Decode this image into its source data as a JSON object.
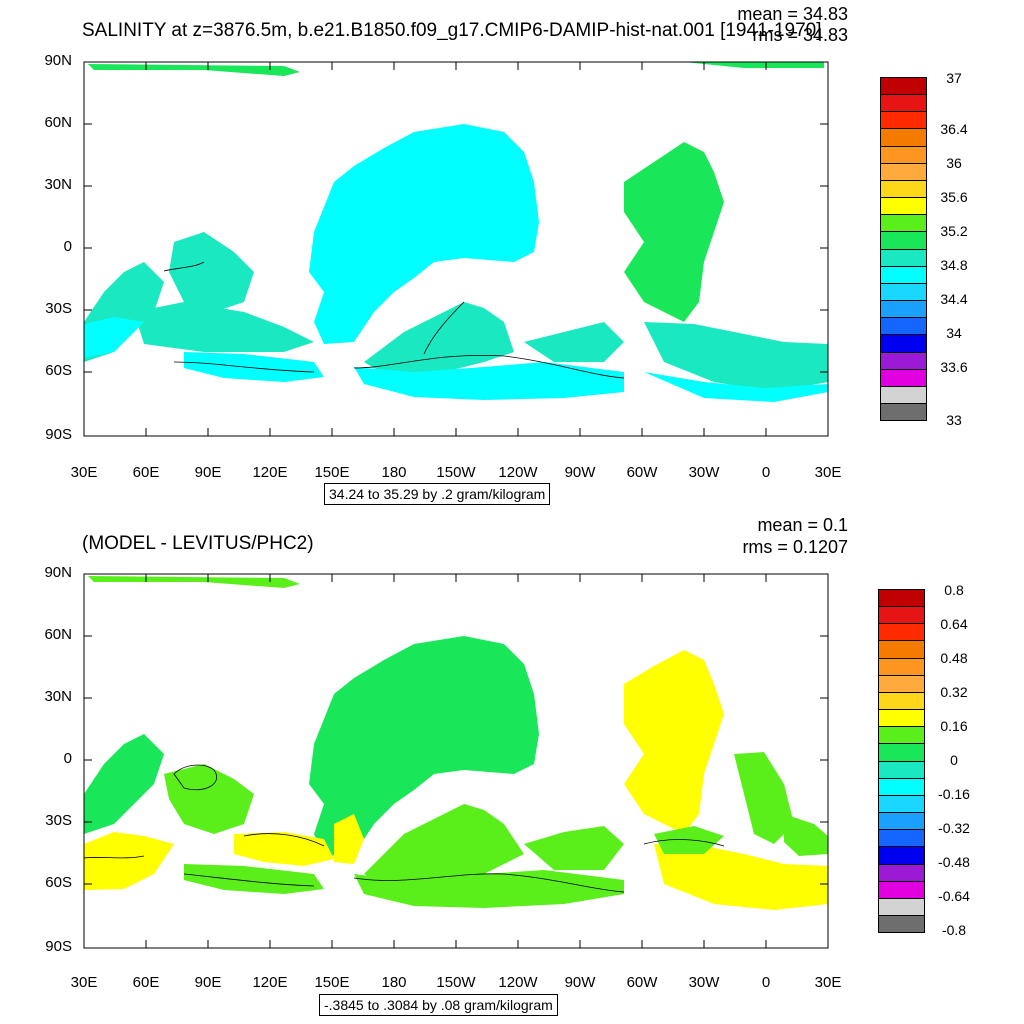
{
  "panel1": {
    "title": "SALINITY at z=3876.5m, b.e21.B1850.f09_g17.CMIP6-DAMIP-hist-nat.001 [1941-1970]",
    "mean": "mean = 34.83",
    "rms": "rms = 34.83",
    "range": "34.24 to 35.29 by .2 gram/kilogram",
    "colorbar_labels": [
      "37",
      "36.4",
      "36",
      "35.6",
      "35.2",
      "34.8",
      "34.4",
      "34",
      "33.6",
      "33"
    ]
  },
  "panel2": {
    "title": "(MODEL - LEVITUS/PHC2)",
    "mean": "mean = 0.1",
    "rms": "rms = 0.1207",
    "range": "-.3845 to .3084 by .08 gram/kilogram",
    "colorbar_labels": [
      "0.8",
      "0.64",
      "0.48",
      "0.32",
      "0.16",
      "0",
      "-0.16",
      "-0.32",
      "-0.48",
      "-0.64",
      "-0.8"
    ]
  },
  "axes": {
    "lat_labels": [
      "90N",
      "60N",
      "30N",
      "0",
      "30S",
      "60S",
      "90S"
    ],
    "lon_labels": [
      "30E",
      "60E",
      "90E",
      "120E",
      "150E",
      "180",
      "150W",
      "120W",
      "90W",
      "60W",
      "30W",
      "0",
      "30E"
    ]
  },
  "colors": {
    "palette": [
      "#6e6e6e",
      "#d3d3d3",
      "#e000e0",
      "#9a1ad6",
      "#0000f0",
      "#1466ff",
      "#1aa0ff",
      "#1ad7ff",
      "#00ffff",
      "#1ae8c0",
      "#1ae65a",
      "#5aee1a",
      "#ffff00",
      "#ffd71a",
      "#ffaa3c",
      "#ff9620",
      "#f57a00",
      "#ff2a00",
      "#e61414",
      "#c00000"
    ],
    "panel1_fill_main": "#00ffff",
    "panel1_fill_secondary": "#1ae8c0",
    "panel1_fill_atlantic": "#1ae65a",
    "panel2_fill_main": "#1ae65a",
    "panel2_fill_secondary": "#5aee1a",
    "panel2_fill_atlantic": "#ffff00"
  }
}
